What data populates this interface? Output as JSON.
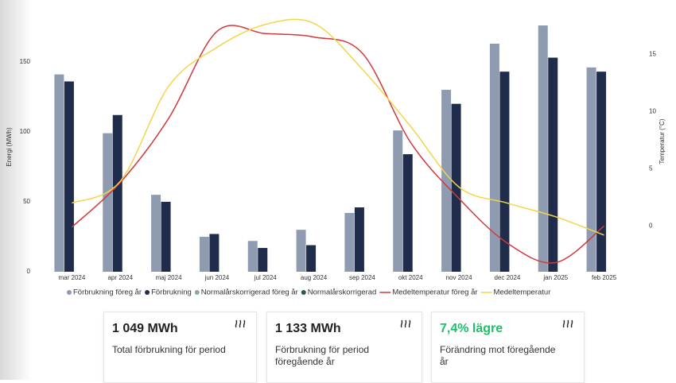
{
  "chart_data": {
    "type": "bar",
    "categories": [
      "mar 2024",
      "apr 2024",
      "maj 2024",
      "jun 2024",
      "jul 2024",
      "aug 2024",
      "sep 2024",
      "okt 2024",
      "nov 2024",
      "dec 2024",
      "jan 2025",
      "feb 2025"
    ],
    "ylabel": "Energi (MWh)",
    "y2label": "Temperatur (°C)",
    "ylim": [
      0,
      180
    ],
    "yticks": [
      0,
      50,
      100,
      150
    ],
    "y2lim": [
      -4,
      18
    ],
    "y2ticks": [
      0,
      5,
      10,
      15
    ],
    "series": [
      {
        "name": "Förbrukning föreg år",
        "type": "bar",
        "color": "#8e9bb0",
        "values": [
          141,
          99,
          55,
          25,
          22,
          30,
          42,
          101,
          130,
          163,
          176,
          146
        ]
      },
      {
        "name": "Förbrukning",
        "type": "bar",
        "color": "#1f2c4c",
        "values": [
          136,
          112,
          50,
          27,
          17,
          19,
          46,
          84,
          120,
          143,
          153,
          143
        ]
      },
      {
        "name": "Normalårskorrigerad föreg år",
        "type": "bar",
        "color": "#8fa7a2",
        "values": [
          null,
          null,
          null,
          null,
          null,
          null,
          null,
          null,
          null,
          null,
          null,
          null
        ]
      },
      {
        "name": "Normalårskorrigerad",
        "type": "bar",
        "color": "#2c5a48",
        "values": [
          null,
          null,
          null,
          null,
          null,
          null,
          null,
          null,
          null,
          null,
          null,
          null
        ]
      },
      {
        "name": "Medeltemperatur föreg år",
        "type": "line",
        "axis": "y2",
        "color": "#d0393e",
        "values": [
          -0.1,
          3.8,
          9.4,
          17,
          16.8,
          16.5,
          15.1,
          7.3,
          2.4,
          -1.5,
          -3.2,
          0
        ]
      },
      {
        "name": "Medeltemperatur",
        "type": "line",
        "axis": "y2",
        "color": "#f3d54a",
        "values": [
          2.0,
          3.9,
          12.2,
          15.6,
          17.6,
          17.7,
          13.7,
          8.7,
          3.4,
          2.0,
          0.8,
          -0.8
        ]
      }
    ]
  },
  "cards": [
    {
      "value": "1 049 MWh",
      "label": "Total förbrukning för period"
    },
    {
      "value": "1 133 MWh",
      "label": "Förbrukning för period föregående år"
    },
    {
      "value": "7,4% lägre",
      "label": "Förändring mot föregående år"
    }
  ]
}
